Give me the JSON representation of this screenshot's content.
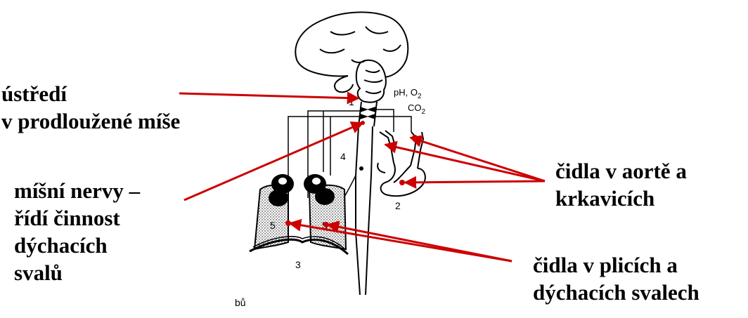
{
  "labels": {
    "center": [
      "ústředí",
      "v prodloužené míše"
    ],
    "spinal": [
      "míšní nervy –",
      "řídí činnost",
      "dýchacích",
      "svalů"
    ],
    "aorta": [
      "čidla v aortě a",
      "krkavicích"
    ],
    "lungs": [
      "čidla v plicích a",
      "dýchacích svalech"
    ]
  },
  "diagram_text": {
    "ph": "pH, O",
    "ph_sub": "2",
    "co": "CO",
    "co_sub": "2",
    "n1": "1",
    "n2": "2",
    "n3": "3",
    "n4": "4",
    "n5a": "5",
    "n5b": "5",
    "fragment": "bů"
  },
  "colors": {
    "arrow": "#cc0000",
    "ink": "#000000",
    "background": "#ffffff"
  }
}
